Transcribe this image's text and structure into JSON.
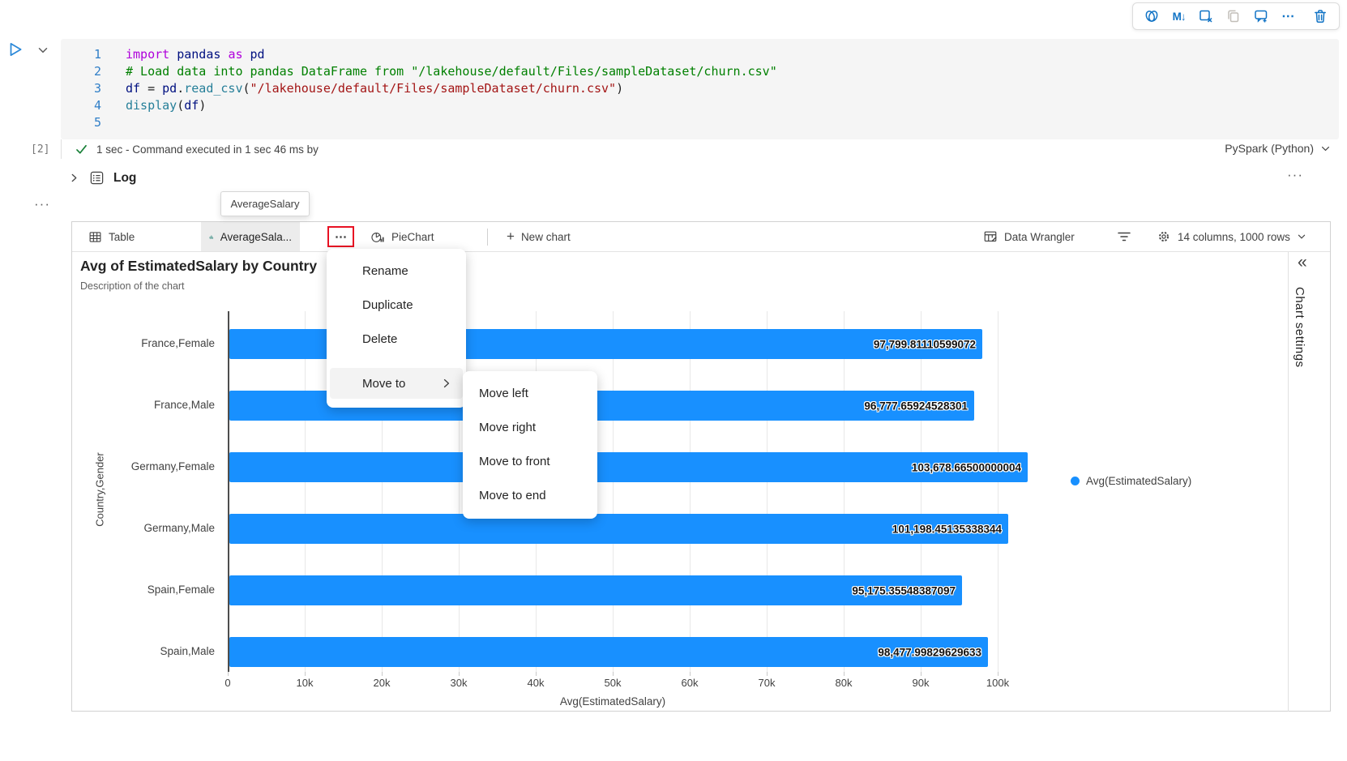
{
  "icons": {
    "more_dots": "···",
    "more_ellipsis": "⋯",
    "collapse_left": "«",
    "plus": "+",
    "markdown": "M↓"
  },
  "cell_toolbar": {
    "icons": [
      "copilot",
      "convert-to-markdown",
      "clear-outputs",
      "copy-cell",
      "add-comment",
      "more-actions",
      "delete-cell"
    ]
  },
  "code_cell": {
    "execution_count": "[2]",
    "status_text": "1 sec - Command executed in 1 sec 46 ms by",
    "language": "PySpark (Python)",
    "lines": [
      {
        "num": "1",
        "tokens": [
          [
            "kw",
            "import"
          ],
          [
            "pl",
            " "
          ],
          [
            "id",
            "pandas"
          ],
          [
            "pl",
            " "
          ],
          [
            "kw",
            "as"
          ],
          [
            "pl",
            " "
          ],
          [
            "id",
            "pd"
          ]
        ]
      },
      {
        "num": "2",
        "tokens": [
          [
            "cm",
            "# Load data into pandas DataFrame from \"/lakehouse/default/Files/sampleDataset/churn.csv\""
          ]
        ]
      },
      {
        "num": "3",
        "tokens": [
          [
            "id",
            "df"
          ],
          [
            "pl",
            " = "
          ],
          [
            "id",
            "pd"
          ],
          [
            "pl",
            "."
          ],
          [
            "fn",
            "read_csv"
          ],
          [
            "pl",
            "("
          ],
          [
            "str",
            "\"/lakehouse/default/Files/sampleDataset/churn.csv\""
          ],
          [
            "pl",
            ")"
          ]
        ]
      },
      {
        "num": "4",
        "tokens": [
          [
            "fn",
            "display"
          ],
          [
            "pl",
            "("
          ],
          [
            "id",
            "df"
          ],
          [
            "pl",
            ")"
          ]
        ]
      },
      {
        "num": "5",
        "tokens": []
      }
    ]
  },
  "log": {
    "label": "Log"
  },
  "tooltip": {
    "text": "AverageSalary"
  },
  "tab_bar": {
    "table_label": "Table",
    "chart_tab_label": "AverageSala...",
    "pie_label": "PieChart",
    "new_chart_label": "New chart",
    "data_wrangler_label": "Data Wrangler",
    "columns_rows_label": "14 columns, 1000 rows"
  },
  "chart_header": {
    "title": "Avg of EstimatedSalary by Country",
    "subtitle": "Description of the chart"
  },
  "chart_settings": {
    "label": "Chart settings"
  },
  "context_menu": {
    "items": [
      "Rename",
      "Duplicate",
      "Delete"
    ],
    "move_to_label": "Move to",
    "submenu_items": [
      "Move left",
      "Move right",
      "Move to front",
      "Move to end"
    ]
  },
  "chart_data": {
    "type": "bar",
    "orientation": "horizontal",
    "title": "Avg of EstimatedSalary by Country",
    "categories": [
      "France,Female",
      "France,Male",
      "Germany,Female",
      "Germany,Male",
      "Spain,Female",
      "Spain,Male"
    ],
    "values": [
      97799.81110599072,
      96777.65924528301,
      103678.66500000004,
      101198.45135338344,
      95175.35548387097,
      98477.99829629633
    ],
    "value_labels": [
      "97,799.81110599072",
      "96,777.65924528301",
      "103,678.66500000004",
      "101,198.45135338344",
      "95,175.35548387097",
      "98,477.99829629633"
    ],
    "xlabel": "Avg(EstimatedSalary)",
    "ylabel": "Country,Gender",
    "xlim": [
      0,
      100000
    ],
    "x_ticks": [
      "0",
      "10k",
      "20k",
      "30k",
      "40k",
      "50k",
      "60k",
      "70k",
      "80k",
      "90k",
      "100k"
    ],
    "grid": true,
    "legend_position": "right",
    "legend": [
      {
        "label": "Avg(EstimatedSalary)",
        "color": "#1890ff"
      }
    ],
    "bar_color": "#1890ff"
  },
  "colors": {
    "accent_blue": "#1173c5",
    "bar_blue": "#1890ff",
    "selection_red": "#e81123",
    "success_green": "#188038",
    "tab_icon_teal": "#0e7569"
  }
}
